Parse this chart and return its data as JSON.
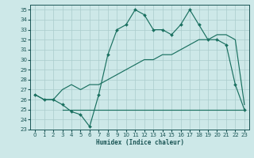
{
  "xlabel": "Humidex (Indice chaleur)",
  "xlim": [
    -0.5,
    23.5
  ],
  "ylim": [
    23,
    35.5
  ],
  "yticks": [
    23,
    24,
    25,
    26,
    27,
    28,
    29,
    30,
    31,
    32,
    33,
    34,
    35
  ],
  "xticks": [
    0,
    1,
    2,
    3,
    4,
    5,
    6,
    7,
    8,
    9,
    10,
    11,
    12,
    13,
    14,
    15,
    16,
    17,
    18,
    19,
    20,
    21,
    22,
    23
  ],
  "bg_color": "#cde8e8",
  "grid_color": "#aacccc",
  "line_color": "#1a7060",
  "line1_x": [
    0,
    1,
    2,
    3,
    4,
    5,
    6,
    7,
    8,
    9,
    10,
    11,
    12,
    13,
    14,
    15,
    16,
    17,
    18,
    19,
    20,
    21,
    22,
    23
  ],
  "line1_y": [
    26.5,
    26.0,
    26.0,
    25.5,
    24.8,
    24.5,
    23.3,
    26.5,
    30.5,
    33.0,
    33.5,
    35.0,
    34.5,
    33.0,
    33.0,
    32.5,
    33.5,
    35.0,
    33.5,
    32.0,
    32.0,
    31.5,
    27.5,
    25.0
  ],
  "line2_x": [
    3,
    10,
    20,
    23
  ],
  "line2_y": [
    25.0,
    25.0,
    25.0,
    25.0
  ],
  "line3_x": [
    0,
    1,
    2,
    3,
    4,
    5,
    6,
    7,
    8,
    9,
    10,
    11,
    12,
    13,
    14,
    15,
    16,
    17,
    18,
    19,
    20,
    21,
    22,
    23
  ],
  "line3_y": [
    26.5,
    26.0,
    26.0,
    27.0,
    27.5,
    27.0,
    27.5,
    27.5,
    28.0,
    28.5,
    29.0,
    29.5,
    30.0,
    30.0,
    30.5,
    30.5,
    31.0,
    31.5,
    32.0,
    32.0,
    32.5,
    32.5,
    32.0,
    25.5
  ]
}
